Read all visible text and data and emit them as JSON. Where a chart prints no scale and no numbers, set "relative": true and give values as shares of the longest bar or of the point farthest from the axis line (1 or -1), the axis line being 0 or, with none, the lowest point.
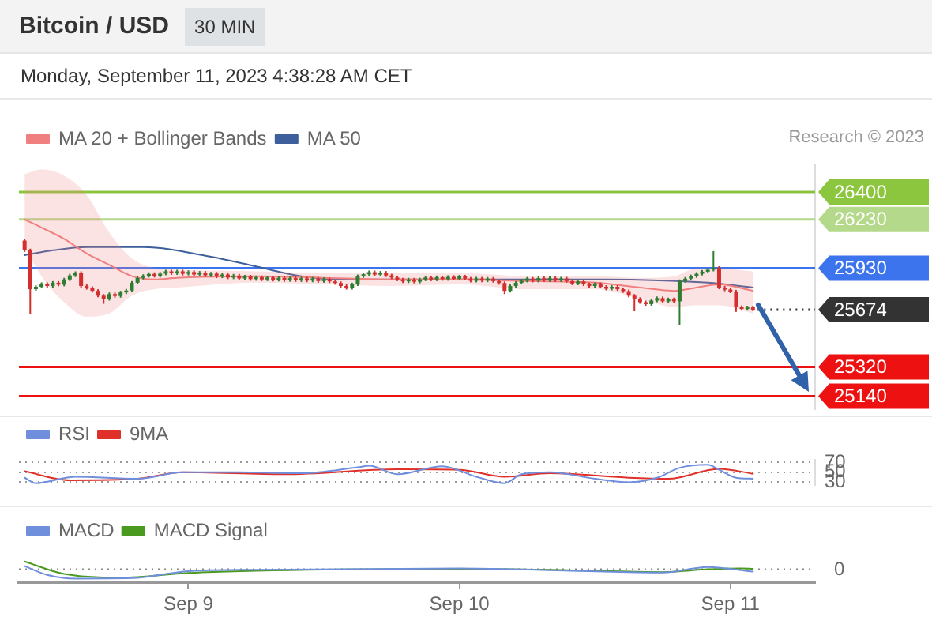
{
  "chart_data": [
    {
      "type": "candlestick",
      "title": "Bitcoin / USD",
      "subtitle": "30 MIN",
      "annotations": [
        "Monday, September 11, 2023 4:38:28 AM CET",
        "Research © 2023"
      ],
      "x": [
        "2023-09-08T09:30",
        "2023-09-08T10:00",
        "2023-09-08T10:30",
        "2023-09-08T11:00",
        "2023-09-08T11:30",
        "2023-09-08T12:00",
        "2023-09-08T12:30",
        "2023-09-08T13:00",
        "2023-09-08T13:30",
        "2023-09-08T14:00",
        "2023-09-08T14:30",
        "2023-09-08T15:00",
        "2023-09-08T15:30",
        "2023-09-08T16:00",
        "2023-09-08T16:30",
        "2023-09-08T17:00",
        "2023-09-08T17:30",
        "2023-09-08T18:00",
        "2023-09-08T18:30",
        "2023-09-08T19:00",
        "2023-09-08T19:30",
        "2023-09-08T20:00",
        "2023-09-08T20:30",
        "2023-09-08T21:00",
        "2023-09-08T21:30",
        "2023-09-08T22:00",
        "2023-09-08T22:30",
        "2023-09-08T23:00",
        "2023-09-08T23:30",
        "2023-09-09T00:00",
        "2023-09-09T00:30",
        "2023-09-09T01:00",
        "2023-09-09T01:30",
        "2023-09-09T02:00",
        "2023-09-09T02:30",
        "2023-09-09T03:00",
        "2023-09-09T03:30",
        "2023-09-09T04:00",
        "2023-09-09T04:30",
        "2023-09-09T05:00",
        "2023-09-09T05:30",
        "2023-09-09T06:00",
        "2023-09-09T06:30",
        "2023-09-09T07:00",
        "2023-09-09T07:30",
        "2023-09-09T08:00",
        "2023-09-09T08:30",
        "2023-09-09T09:00",
        "2023-09-09T09:30",
        "2023-09-09T10:00",
        "2023-09-09T10:30",
        "2023-09-09T11:00",
        "2023-09-09T11:30",
        "2023-09-09T12:00",
        "2023-09-09T12:30",
        "2023-09-09T13:00",
        "2023-09-09T13:30",
        "2023-09-09T14:00",
        "2023-09-09T14:30",
        "2023-09-09T15:00",
        "2023-09-09T15:30",
        "2023-09-09T16:00",
        "2023-09-09T16:30",
        "2023-09-09T17:00",
        "2023-09-09T17:30",
        "2023-09-09T18:00",
        "2023-09-09T18:30",
        "2023-09-09T19:00",
        "2023-09-09T19:30",
        "2023-09-09T20:00",
        "2023-09-09T20:30",
        "2023-09-09T21:00",
        "2023-09-09T21:30",
        "2023-09-09T22:00",
        "2023-09-09T22:30",
        "2023-09-09T23:00",
        "2023-09-09T23:30",
        "2023-09-10T00:00",
        "2023-09-10T00:30",
        "2023-09-10T01:00",
        "2023-09-10T01:30",
        "2023-09-10T02:00",
        "2023-09-10T02:30",
        "2023-09-10T03:00",
        "2023-09-10T03:30",
        "2023-09-10T04:00",
        "2023-09-10T04:30",
        "2023-09-10T05:00",
        "2023-09-10T05:30",
        "2023-09-10T06:00",
        "2023-09-10T06:30",
        "2023-09-10T07:00",
        "2023-09-10T07:30",
        "2023-09-10T08:00",
        "2023-09-10T08:30",
        "2023-09-10T09:00",
        "2023-09-10T09:30",
        "2023-09-10T10:00",
        "2023-09-10T10:30",
        "2023-09-10T11:00",
        "2023-09-10T11:30",
        "2023-09-10T12:00",
        "2023-09-10T12:30",
        "2023-09-10T13:00",
        "2023-09-10T13:30",
        "2023-09-10T14:00",
        "2023-09-10T14:30",
        "2023-09-10T15:00",
        "2023-09-10T15:30",
        "2023-09-10T16:00",
        "2023-09-10T16:30",
        "2023-09-10T17:00",
        "2023-09-10T17:30",
        "2023-09-10T18:00",
        "2023-09-10T18:30",
        "2023-09-10T19:00",
        "2023-09-10T19:30",
        "2023-09-10T20:00",
        "2023-09-10T20:30",
        "2023-09-10T21:00",
        "2023-09-10T21:30",
        "2023-09-10T22:00",
        "2023-09-10T22:30",
        "2023-09-10T23:00",
        "2023-09-10T23:30",
        "2023-09-11T00:00",
        "2023-09-11T00:30",
        "2023-09-11T01:00",
        "2023-09-11T01:30",
        "2023-09-11T02:00"
      ],
      "ohlc": [
        [
          26100,
          26110,
          26030,
          26040
        ],
        [
          26040,
          26050,
          25645,
          25800
        ],
        [
          25800,
          25825,
          25790,
          25815
        ],
        [
          25815,
          25842,
          25805,
          25832
        ],
        [
          25832,
          25842,
          25810,
          25820
        ],
        [
          25820,
          25850,
          25810,
          25840
        ],
        [
          25840,
          25850,
          25818,
          25828
        ],
        [
          25828,
          25870,
          25818,
          25860
        ],
        [
          25860,
          25895,
          25850,
          25885
        ],
        [
          25885,
          25910,
          25875,
          25900
        ],
        [
          25900,
          25910,
          25810,
          25820
        ],
        [
          25820,
          25830,
          25798,
          25808
        ],
        [
          25808,
          25818,
          25780,
          25790
        ],
        [
          25790,
          25800,
          25750,
          25760
        ],
        [
          25760,
          25770,
          25710,
          25740
        ],
        [
          25740,
          25780,
          25730,
          25770
        ],
        [
          25770,
          25780,
          25748,
          25758
        ],
        [
          25758,
          25790,
          25748,
          25780
        ],
        [
          25780,
          25802,
          25770,
          25792
        ],
        [
          25792,
          25850,
          25782,
          25840
        ],
        [
          25840,
          25880,
          25830,
          25870
        ],
        [
          25870,
          25892,
          25860,
          25882
        ],
        [
          25882,
          25904,
          25872,
          25894
        ],
        [
          25894,
          25904,
          25872,
          25882
        ],
        [
          25882,
          25906,
          25872,
          25896
        ],
        [
          25896,
          25920,
          25886,
          25910
        ],
        [
          25910,
          25920,
          25888,
          25898
        ],
        [
          25898,
          25920,
          25888,
          25910
        ],
        [
          25910,
          25920,
          25885,
          25895
        ],
        [
          25895,
          25916,
          25885,
          25906
        ],
        [
          25906,
          25916,
          25880,
          25890
        ],
        [
          25890,
          25912,
          25880,
          25902
        ],
        [
          25902,
          25912,
          25875,
          25885
        ],
        [
          25885,
          25906,
          25875,
          25896
        ],
        [
          25896,
          25906,
          25868,
          25878
        ],
        [
          25878,
          25900,
          25868,
          25890
        ],
        [
          25890,
          25900,
          25862,
          25872
        ],
        [
          25872,
          25894,
          25862,
          25884
        ],
        [
          25884,
          25894,
          25856,
          25866
        ],
        [
          25866,
          25888,
          25856,
          25878
        ],
        [
          25878,
          25888,
          25852,
          25862
        ],
        [
          25862,
          25884,
          25852,
          25874
        ],
        [
          25874,
          25884,
          25850,
          25860
        ],
        [
          25860,
          25882,
          25850,
          25872
        ],
        [
          25872,
          25882,
          25848,
          25858
        ],
        [
          25858,
          25880,
          25848,
          25870
        ],
        [
          25870,
          25880,
          25846,
          25856
        ],
        [
          25856,
          25878,
          25846,
          25868
        ],
        [
          25868,
          25878,
          25845,
          25855
        ],
        [
          25855,
          25877,
          25845,
          25867
        ],
        [
          25867,
          25877,
          25843,
          25853
        ],
        [
          25853,
          25875,
          25843,
          25865
        ],
        [
          25865,
          25875,
          25840,
          25850
        ],
        [
          25850,
          25872,
          25840,
          25862
        ],
        [
          25862,
          25872,
          25838,
          25848
        ],
        [
          25848,
          25858,
          25828,
          25838
        ],
        [
          25838,
          25848,
          25810,
          25820
        ],
        [
          25820,
          25830,
          25798,
          25808
        ],
        [
          25808,
          25840,
          25798,
          25830
        ],
        [
          25830,
          25890,
          25820,
          25880
        ],
        [
          25880,
          25902,
          25870,
          25892
        ],
        [
          25892,
          25915,
          25882,
          25905
        ],
        [
          25905,
          25915,
          25880,
          25890
        ],
        [
          25890,
          25912,
          25880,
          25902
        ],
        [
          25902,
          25912,
          25875,
          25885
        ],
        [
          25885,
          25895,
          25862,
          25872
        ],
        [
          25872,
          25882,
          25850,
          25860
        ],
        [
          25860,
          25870,
          25838,
          25848
        ],
        [
          25848,
          25870,
          25838,
          25860
        ],
        [
          25860,
          25870,
          25836,
          25846
        ],
        [
          25846,
          25870,
          25836,
          25860
        ],
        [
          25860,
          25882,
          25850,
          25872
        ],
        [
          25872,
          25882,
          25850,
          25860
        ],
        [
          25860,
          25884,
          25850,
          25874
        ],
        [
          25874,
          25884,
          25852,
          25862
        ],
        [
          25862,
          25886,
          25852,
          25876
        ],
        [
          25876,
          25886,
          25854,
          25864
        ],
        [
          25864,
          25888,
          25854,
          25878
        ],
        [
          25878,
          25888,
          25855,
          25865
        ],
        [
          25865,
          25875,
          25842,
          25852
        ],
        [
          25852,
          25876,
          25842,
          25866
        ],
        [
          25866,
          25876,
          25843,
          25853
        ],
        [
          25853,
          25875,
          25843,
          25865
        ],
        [
          25865,
          25875,
          25840,
          25850
        ],
        [
          25850,
          25860,
          25828,
          25838
        ],
        [
          25838,
          25848,
          25770,
          25790
        ],
        [
          25790,
          25830,
          25780,
          25820
        ],
        [
          25820,
          25850,
          25810,
          25840
        ],
        [
          25840,
          25862,
          25830,
          25852
        ],
        [
          25852,
          25875,
          25842,
          25865
        ],
        [
          25865,
          25875,
          25842,
          25852
        ],
        [
          25852,
          25878,
          25842,
          25868
        ],
        [
          25868,
          25878,
          25845,
          25855
        ],
        [
          25855,
          25878,
          25845,
          25868
        ],
        [
          25868,
          25878,
          25845,
          25855
        ],
        [
          25855,
          25876,
          25845,
          25866
        ],
        [
          25866,
          25876,
          25840,
          25850
        ],
        [
          25850,
          25860,
          25825,
          25835
        ],
        [
          25835,
          25858,
          25825,
          25848
        ],
        [
          25848,
          25858,
          25820,
          25830
        ],
        [
          25830,
          25840,
          25810,
          25820
        ],
        [
          25820,
          25842,
          25810,
          25832
        ],
        [
          25832,
          25842,
          25805,
          25815
        ],
        [
          25815,
          25825,
          25793,
          25803
        ],
        [
          25803,
          25825,
          25793,
          25815
        ],
        [
          25815,
          25825,
          25790,
          25800
        ],
        [
          25800,
          25810,
          25778,
          25788
        ],
        [
          25788,
          25798,
          25750,
          25760
        ],
        [
          25760,
          25770,
          25664,
          25740
        ],
        [
          25740,
          25750,
          25710,
          25720
        ],
        [
          25720,
          25730,
          25698,
          25708
        ],
        [
          25708,
          25740,
          25698,
          25730
        ],
        [
          25730,
          25755,
          25720,
          25745
        ],
        [
          25745,
          25755,
          25715,
          25725
        ],
        [
          25725,
          25748,
          25715,
          25738
        ],
        [
          25738,
          25748,
          25715,
          25725
        ],
        [
          25725,
          25860,
          25580,
          25850
        ],
        [
          25850,
          25875,
          25840,
          25865
        ],
        [
          25865,
          25890,
          25855,
          25880
        ],
        [
          25880,
          25905,
          25870,
          25895
        ],
        [
          25895,
          25918,
          25885,
          25908
        ],
        [
          25908,
          25930,
          25898,
          25920
        ],
        [
          25920,
          26035,
          25910,
          25932
        ],
        [
          25932,
          25942,
          25800,
          25810
        ],
        [
          25810,
          25820,
          25788,
          25798
        ],
        [
          25798,
          25808,
          25776,
          25786
        ],
        [
          25786,
          25796,
          25660,
          25690
        ],
        [
          25690,
          25700,
          25668,
          25678
        ],
        [
          25678,
          25698,
          25668,
          25688
        ],
        [
          25688,
          25698,
          25664,
          25674
        ]
      ],
      "series": [
        {
          "type": "line",
          "name": "MA 20 + Bollinger Bands",
          "color": "#f08080",
          "x": [
            "2023-09-08T09:30",
            "2023-09-08T11:00",
            "2023-09-08T13:00",
            "2023-09-08T15:00",
            "2023-09-08T17:00",
            "2023-09-08T19:00",
            "2023-09-08T21:00",
            "2023-09-08T23:00",
            "2023-09-09T06:00",
            "2023-09-09T12:00",
            "2023-09-09T18:00",
            "2023-09-10T00:00",
            "2023-09-10T06:00",
            "2023-09-10T12:00",
            "2023-09-10T16:00",
            "2023-09-10T19:00",
            "2023-09-10T21:00",
            "2023-09-10T23:00",
            "2023-09-11T02:00"
          ],
          "values": [
            26230,
            26180,
            26110,
            26020,
            25950,
            25880,
            25860,
            25870,
            25880,
            25870,
            25860,
            25860,
            25850,
            25840,
            25810,
            25790,
            25810,
            25830,
            25790
          ],
          "upper": [
            26510,
            26540,
            26500,
            26380,
            26150,
            25990,
            25930,
            25920,
            25910,
            25900,
            25900,
            25900,
            25880,
            25880,
            25870,
            25880,
            25930,
            25930,
            25910
          ],
          "lower": [
            26060,
            25880,
            25720,
            25630,
            25650,
            25760,
            25800,
            25810,
            25840,
            25830,
            25820,
            25830,
            25800,
            25800,
            25740,
            25690,
            25700,
            25700,
            25650
          ]
        },
        {
          "type": "line",
          "name": "MA 50",
          "color": "#3d5f9c",
          "x": [
            "2023-09-08T09:30",
            "2023-09-08T12:00",
            "2023-09-08T15:00",
            "2023-09-08T20:00",
            "2023-09-09T02:00",
            "2023-09-09T06:00",
            "2023-09-09T10:00",
            "2023-09-09T14:00",
            "2023-09-10T00:00",
            "2023-09-10T12:00",
            "2023-09-10T22:00",
            "2023-09-11T02:00"
          ],
          "values": [
            26010,
            26040,
            26060,
            26060,
            26000,
            25940,
            25880,
            25860,
            25860,
            25860,
            25840,
            25810
          ]
        }
      ],
      "xlim": [
        "2023-09-08T09:00",
        "2023-09-11T07:30"
      ],
      "ylim": [
        25060,
        26570
      ],
      "ref_lines": [
        {
          "axis": "y",
          "value": 26400,
          "label": "26400",
          "color": "#8cc63f"
        },
        {
          "axis": "y",
          "value": 26230,
          "label": "26230",
          "color": "#b5d98a"
        },
        {
          "axis": "y",
          "value": 25930,
          "label": "25930",
          "color": "#3b74ec"
        },
        {
          "axis": "y",
          "value": 25674,
          "label": "25674",
          "color": "#333333",
          "line_style": "dotted"
        },
        {
          "axis": "y",
          "value": 25320,
          "label": "25320",
          "color": "#ee1111"
        },
        {
          "axis": "y",
          "value": 25140,
          "label": "25140",
          "color": "#ee1111"
        }
      ],
      "legend": "top left",
      "marker": "none",
      "tick_labels": false
    },
    {
      "type": "line",
      "series": [
        {
          "name": "RSI",
          "color": "#6f8fdc",
          "x": [
            "2023-09-08T09:30",
            "2023-09-08T10:30",
            "2023-09-08T14:00",
            "2023-09-08T19:30",
            "2023-09-08T23:30",
            "2023-09-09T04:30",
            "2023-09-09T10:00",
            "2023-09-09T15:00",
            "2023-09-09T16:00",
            "2023-09-09T18:30",
            "2023-09-09T22:30",
            "2023-09-10T01:30",
            "2023-09-10T04:00",
            "2023-09-10T05:30",
            "2023-09-10T08:00",
            "2023-09-10T12:00",
            "2023-09-10T15:00",
            "2023-09-10T17:30",
            "2023-09-10T19:30",
            "2023-09-10T22:00",
            "2023-09-10T23:00",
            "2023-09-11T00:30",
            "2023-09-11T02:00"
          ],
          "values": [
            39,
            28,
            41,
            37,
            50,
            50,
            48,
            60,
            63,
            46,
            62,
            41,
            28,
            46,
            50,
            37,
            30,
            39,
            59,
            65,
            55,
            39,
            37
          ]
        },
        {
          "name": "9MA",
          "color": "#e0302a",
          "x": [
            "2023-09-08T09:30",
            "2023-09-08T13:30",
            "2023-09-08T19:30",
            "2023-09-08T23:30",
            "2023-09-09T08:30",
            "2023-09-09T18:30",
            "2023-09-10T00:00",
            "2023-09-10T04:00",
            "2023-09-10T08:00",
            "2023-09-10T15:00",
            "2023-09-10T18:30",
            "2023-09-10T23:00",
            "2023-09-11T02:00"
          ],
          "values": [
            52,
            34,
            37,
            50,
            46,
            56,
            55,
            41,
            48,
            39,
            37,
            57,
            47
          ]
        }
      ],
      "xlim": [
        "2023-09-08T09:00",
        "2023-09-11T07:30"
      ],
      "ylim": [
        25,
        75
      ],
      "yticks": [
        30,
        50,
        70
      ],
      "grid": "y",
      "legend": "top left",
      "marker": "none",
      "tick_labels": "y"
    },
    {
      "type": "line",
      "relative": true,
      "series": [
        {
          "name": "MACD",
          "color": "#6f8fdc",
          "x": [
            "2023-09-08T09:30",
            "2023-09-08T11:30",
            "2023-09-08T14:00",
            "2023-09-08T19:00",
            "2023-09-09T00:00",
            "2023-09-09T06:00",
            "2023-09-10T00:00",
            "2023-09-10T08:00",
            "2023-09-10T18:00",
            "2023-09-10T22:00",
            "2023-09-11T02:00"
          ],
          "values": [
            0.33,
            -0.6,
            -1,
            -0.95,
            -0.2,
            -0.05,
            0.1,
            -0.1,
            -0.35,
            0.25,
            -0.25
          ]
        },
        {
          "name": "MACD Signal",
          "color": "#4a9a20",
          "x": [
            "2023-09-08T09:30",
            "2023-09-08T13:00",
            "2023-09-08T18:00",
            "2023-09-09T00:00",
            "2023-09-09T06:00",
            "2023-09-10T00:00",
            "2023-09-10T08:00",
            "2023-09-10T18:00",
            "2023-09-10T22:00",
            "2023-09-11T01:00",
            "2023-09-11T02:00"
          ],
          "values": [
            0.83,
            -0.5,
            -0.9,
            -0.4,
            -0.15,
            0.05,
            -0.05,
            -0.3,
            0,
            0.1,
            0.05
          ]
        }
      ],
      "xlim": [
        "2023-09-08T09:00",
        "2023-09-11T07:30"
      ],
      "xticks": [
        {
          "value": "2023-09-09",
          "label": "Sep 9"
        },
        {
          "value": "2023-09-10",
          "label": "Sep 10"
        },
        {
          "value": "2023-09-11",
          "label": "Sep 11"
        }
      ],
      "ref_lines": [
        {
          "axis": "y",
          "value": 0,
          "label": "0",
          "line_style": "dotted"
        }
      ],
      "legend": "top left",
      "marker": "none",
      "tick_labels": "x"
    }
  ]
}
